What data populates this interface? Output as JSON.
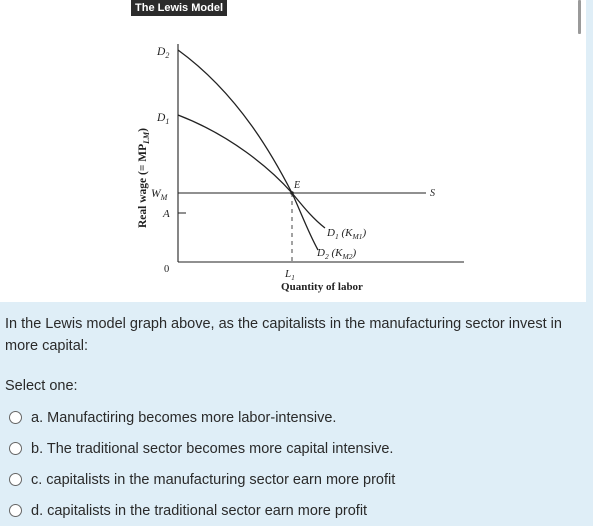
{
  "figure": {
    "title": "The Lewis Model",
    "y_axis_label_main": "Real wage (= MP",
    "y_axis_label_sub": "LM",
    "y_axis_label_end": ")",
    "x_axis_label": "Quantity of labor",
    "labels": {
      "d2_top": "D",
      "d2_top_sub": "2",
      "d1_top": "D",
      "d1_top_sub": "1",
      "wm": "W",
      "wm_sub": "M",
      "a": "A",
      "origin": "0",
      "e": "E",
      "s": "S",
      "l1": "L",
      "l1_sub": "1",
      "d1_curve": "D",
      "d1_curve_sub": "1",
      "d1_curve_paren_open": " (K",
      "d1_curve_paren_sub": "M1",
      "d1_curve_paren_close": ")",
      "d2_curve": "D",
      "d2_curve_sub": "2",
      "d2_curve_paren_open": " (K",
      "d2_curve_paren_sub": "M2",
      "d2_curve_paren_close": ")"
    }
  },
  "question": {
    "text": "In the Lewis model graph above, as the capitalists in the manufacturing sector invest in more capital:",
    "select_label": "Select one:",
    "options": [
      "a. Manufactiring becomes more labor-intensive.",
      "b. The traditional sector becomes more capital intensive.",
      "c. capitalists in the manufacturing sector earn more profit",
      "d. capitalists in the traditional sector earn more profit"
    ]
  }
}
